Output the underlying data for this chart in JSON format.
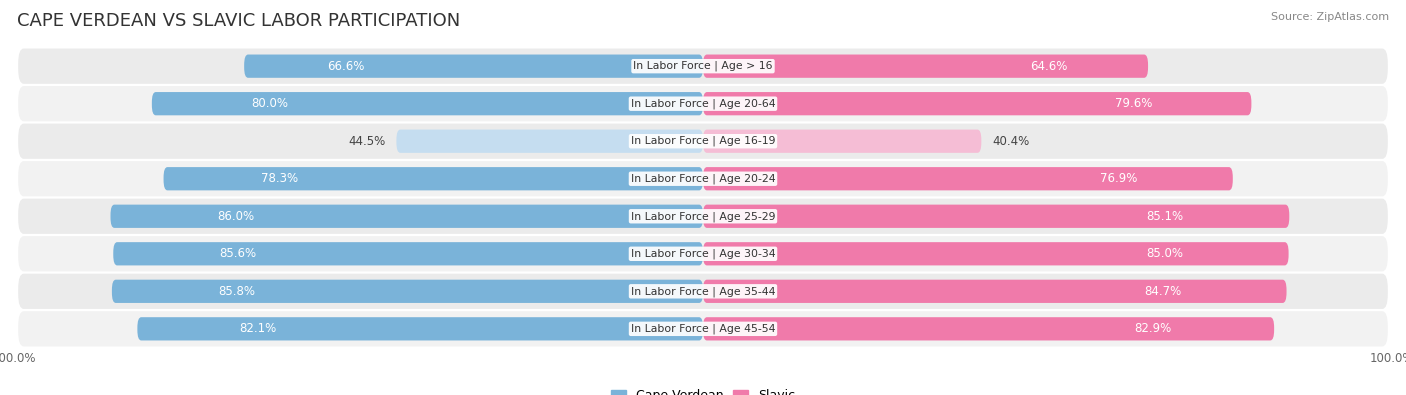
{
  "title": "CAPE VERDEAN VS SLAVIC LABOR PARTICIPATION",
  "source": "Source: ZipAtlas.com",
  "categories": [
    "In Labor Force | Age > 16",
    "In Labor Force | Age 20-64",
    "In Labor Force | Age 16-19",
    "In Labor Force | Age 20-24",
    "In Labor Force | Age 25-29",
    "In Labor Force | Age 30-34",
    "In Labor Force | Age 35-44",
    "In Labor Force | Age 45-54"
  ],
  "cape_verdean": [
    66.6,
    80.0,
    44.5,
    78.3,
    86.0,
    85.6,
    85.8,
    82.1
  ],
  "slavic": [
    64.6,
    79.6,
    40.4,
    76.9,
    85.1,
    85.0,
    84.7,
    82.9
  ],
  "cape_verdean_color": "#7ab3d9",
  "cape_verdean_light_color": "#c5ddf0",
  "slavic_color": "#f07aaa",
  "slavic_light_color": "#f5bdd5",
  "bar_height": 0.62,
  "max_val": 100.0,
  "title_fontsize": 13,
  "label_fontsize": 8.5,
  "tick_fontsize": 8.5,
  "legend_fontsize": 9,
  "bg_color": "#ffffff",
  "row_colors": [
    "#f0f0f0",
    "#e8e8e8"
  ]
}
